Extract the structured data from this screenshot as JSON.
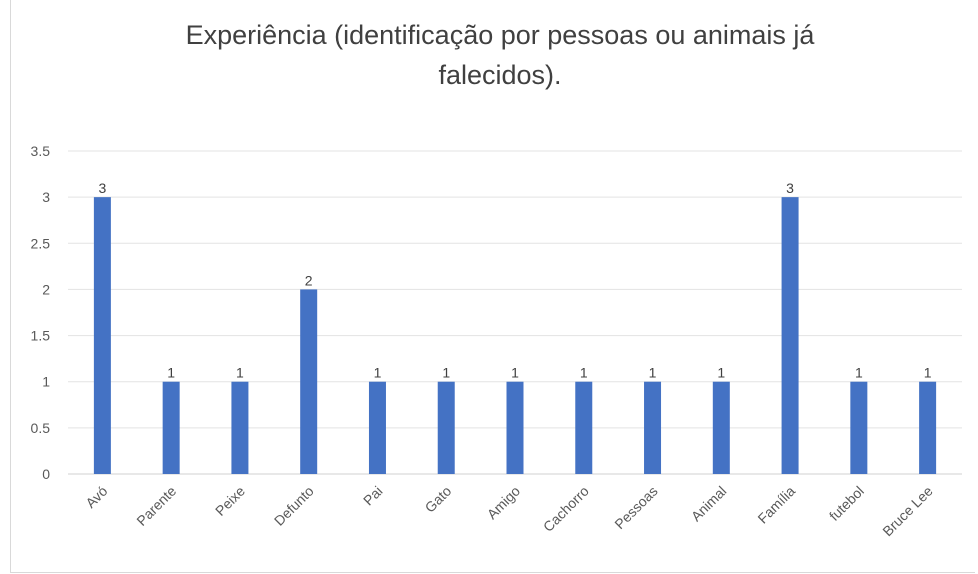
{
  "chart_data": {
    "type": "bar",
    "title_line1": "Experiência (identificação por pessoas ou animais já",
    "title_line2": "falecidos).",
    "categories": [
      "Avó",
      "Parente",
      "Peixe",
      "Defunto",
      "Pai",
      "Gato",
      "Amigo",
      "Cachorro",
      "Pessoas",
      "Animal",
      "Família",
      "futebol",
      "Bruce Lee"
    ],
    "values": [
      3,
      1,
      1,
      2,
      1,
      1,
      1,
      1,
      1,
      1,
      3,
      1,
      1
    ],
    "ylim": [
      0,
      3.5
    ],
    "yticks": [
      "0",
      "0.5",
      "1",
      "1.5",
      "2",
      "2.5",
      "3",
      "3.5"
    ],
    "grid": true,
    "bar_color": "#4472c4",
    "data_labels": true
  }
}
